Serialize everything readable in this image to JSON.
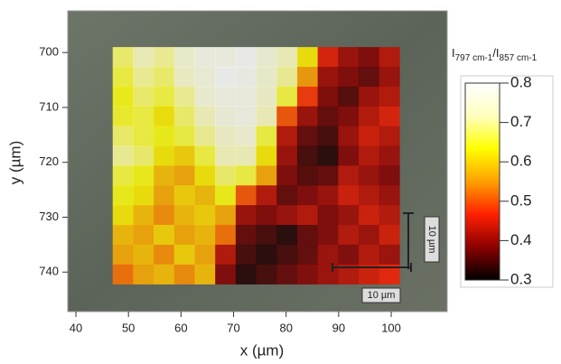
{
  "chart_data": {
    "type": "heatmap",
    "xlabel": "x (µm)",
    "ylabel": "y (µm)",
    "zlabel": [
      "I",
      "797 cm-1",
      "/I",
      "857 cm-1"
    ],
    "xlim": [
      38.45,
      110.65
    ],
    "xticks": [
      40,
      50,
      60,
      70,
      80,
      90,
      100
    ],
    "ylim": [
      692.4,
      747.2
    ],
    "yticks": [
      700,
      710,
      720,
      730,
      740
    ],
    "y_inverted": true,
    "zlim": [
      0.3,
      0.8
    ],
    "zticks": [
      0.3,
      0.4,
      0.5,
      0.6,
      0.7,
      0.8
    ],
    "colormap": [
      "#000000",
      "#8b0000",
      "#ff2000",
      "#ffa000",
      "#ffff00",
      "#ffffc0",
      "#ffffff"
    ],
    "xbins": [
      47,
      50.9,
      54.8,
      58.7,
      62.6,
      66.5,
      70.4,
      74.3,
      78.2,
      82.1,
      86,
      89.9,
      93.8,
      97.7,
      101.6
    ],
    "ybins": [
      699,
      702.6,
      706.2,
      709.8,
      713.4,
      717,
      720.6,
      724.2,
      727.8,
      731.4,
      735,
      738.6,
      742.2
    ],
    "z": [
      [
        0.68,
        0.72,
        0.7,
        0.75,
        0.78,
        0.78,
        0.8,
        0.76,
        0.72,
        0.62,
        0.45,
        0.4,
        0.38,
        0.42
      ],
      [
        0.66,
        0.7,
        0.68,
        0.74,
        0.77,
        0.8,
        0.79,
        0.75,
        0.7,
        0.55,
        0.4,
        0.38,
        0.36,
        0.4
      ],
      [
        0.64,
        0.68,
        0.66,
        0.7,
        0.76,
        0.78,
        0.78,
        0.74,
        0.66,
        0.48,
        0.38,
        0.35,
        0.4,
        0.42
      ],
      [
        0.65,
        0.66,
        0.62,
        0.68,
        0.72,
        0.77,
        0.78,
        0.72,
        0.5,
        0.4,
        0.36,
        0.38,
        0.42,
        0.45
      ],
      [
        0.68,
        0.66,
        0.64,
        0.66,
        0.7,
        0.74,
        0.76,
        0.66,
        0.42,
        0.36,
        0.34,
        0.4,
        0.44,
        0.42
      ],
      [
        0.7,
        0.68,
        0.62,
        0.6,
        0.66,
        0.72,
        0.72,
        0.62,
        0.4,
        0.34,
        0.32,
        0.38,
        0.42,
        0.4
      ],
      [
        0.66,
        0.64,
        0.58,
        0.56,
        0.62,
        0.68,
        0.66,
        0.56,
        0.38,
        0.35,
        0.36,
        0.42,
        0.4,
        0.38
      ],
      [
        0.64,
        0.62,
        0.56,
        0.6,
        0.58,
        0.64,
        0.5,
        0.42,
        0.36,
        0.38,
        0.4,
        0.44,
        0.42,
        0.4
      ],
      [
        0.62,
        0.58,
        0.54,
        0.58,
        0.6,
        0.56,
        0.4,
        0.38,
        0.4,
        0.42,
        0.38,
        0.4,
        0.44,
        0.42
      ],
      [
        0.58,
        0.56,
        0.6,
        0.56,
        0.58,
        0.52,
        0.36,
        0.34,
        0.32,
        0.36,
        0.38,
        0.42,
        0.4,
        0.44
      ],
      [
        0.56,
        0.58,
        0.54,
        0.6,
        0.56,
        0.42,
        0.34,
        0.32,
        0.34,
        0.36,
        0.4,
        0.38,
        0.42,
        0.4
      ],
      [
        0.52,
        0.56,
        0.58,
        0.54,
        0.58,
        0.38,
        0.32,
        0.34,
        0.36,
        0.38,
        0.4,
        0.42,
        0.44,
        0.46
      ]
    ],
    "annotations": [
      "10 µm",
      "10 µm"
    ]
  }
}
